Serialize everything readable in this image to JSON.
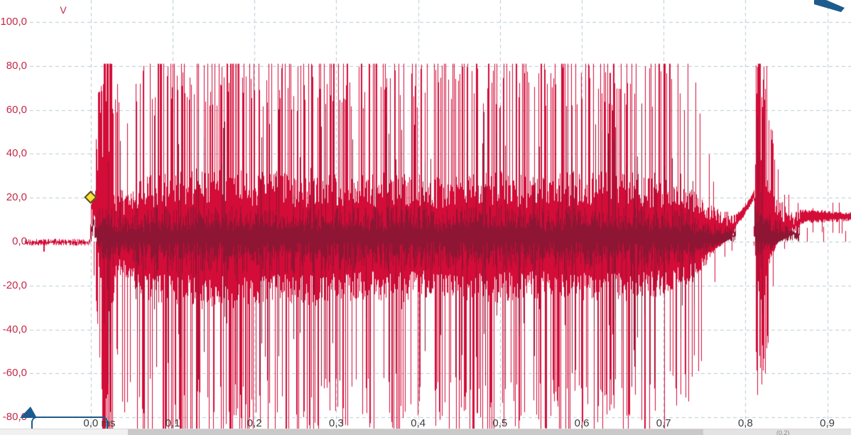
{
  "view": {
    "name": "oscilloscope waveform view",
    "background": "#ffffff"
  },
  "axes": {
    "y": {
      "unit": "V",
      "ticks": [
        {
          "label": "100,0",
          "value": 100
        },
        {
          "label": "80,0",
          "value": 80
        },
        {
          "label": "60,0",
          "value": 60
        },
        {
          "label": "40,0",
          "value": 40
        },
        {
          "label": "20,0",
          "value": 20
        },
        {
          "label": "0,0",
          "value": 0
        },
        {
          "label": "-20,0",
          "value": -20
        },
        {
          "label": "-40,0",
          "value": -40
        },
        {
          "label": "-60,0",
          "value": -60
        },
        {
          "label": "-80,0",
          "value": -80
        }
      ]
    },
    "x": {
      "ticks": [
        {
          "label": "0,0 ms",
          "t": 0.0
        },
        {
          "label": "0,1",
          "t": 0.1
        },
        {
          "label": "0,2",
          "t": 0.2
        },
        {
          "label": "0,3",
          "t": 0.3
        },
        {
          "label": "0,4",
          "t": 0.4
        },
        {
          "label": "0,5",
          "t": 0.5
        },
        {
          "label": "0,6",
          "t": 0.6
        },
        {
          "label": "0,7",
          "t": 0.7
        },
        {
          "label": "0,8",
          "t": 0.8
        },
        {
          "label": "0,9",
          "t": 0.9
        }
      ]
    }
  },
  "colors": {
    "trace_bright": "#d30c38",
    "trace_dark": "#8e1634",
    "grid": "#b7cdd6",
    "y_label": "#c42847",
    "x_label": "#3c3c3c",
    "marker_blue": "#1b5b8d",
    "diamond_fill": "#ffe03c"
  },
  "markers": {
    "trigger_diamond": {
      "t_ms": 0.0,
      "v": 20
    },
    "bottom_left_flag": true,
    "top_right_arrow": true
  },
  "scrollbar": {
    "partial_text": "(0.2)"
  },
  "chart_data": {
    "type": "line",
    "subtype": "oscilloscope noise-burst trace",
    "title": "",
    "xlabel": "ms",
    "ylabel": "V",
    "xlim_ms": [
      -0.111,
      0.929
    ],
    "ylim_v": [
      -88,
      110
    ],
    "grid": true,
    "grid_step_v": 20,
    "grid_step_ms": 0.1,
    "envelope_columns": [
      "t_ms",
      "band_lo_v",
      "band_hi_v",
      "spike_lo_v",
      "spike_hi_v",
      "spike_prob"
    ],
    "envelope": [
      [
        -0.081,
        -1.0,
        0.5,
        0,
        0,
        0.0
      ],
      [
        -0.06,
        -1.0,
        0.5,
        -5,
        0,
        0.07
      ],
      [
        -0.02,
        -1.0,
        0.5,
        0,
        0,
        0.0
      ],
      [
        -0.001,
        -1.0,
        0.5,
        0,
        0,
        0.0
      ],
      [
        0.0,
        18,
        27,
        0,
        0,
        0.0
      ],
      [
        0.004,
        15,
        30,
        -20,
        35,
        0.2
      ],
      [
        0.013,
        -30,
        45,
        -85,
        81,
        0.75
      ],
      [
        0.024,
        -35,
        40,
        -88,
        81,
        0.8
      ],
      [
        0.032,
        -15,
        25,
        -60,
        60,
        0.3
      ],
      [
        0.045,
        -18,
        22,
        -70,
        55,
        0.25
      ],
      [
        0.06,
        -25,
        28,
        -80,
        70,
        0.3
      ],
      [
        0.08,
        -30,
        32,
        -85,
        81,
        0.35
      ],
      [
        0.1,
        -28,
        30,
        -85,
        81,
        0.35
      ],
      [
        0.14,
        -32,
        34,
        -88,
        81,
        0.4
      ],
      [
        0.18,
        -30,
        33,
        -85,
        81,
        0.4
      ],
      [
        0.22,
        -28,
        32,
        -80,
        81,
        0.35
      ],
      [
        0.26,
        -30,
        30,
        -85,
        78,
        0.35
      ],
      [
        0.3,
        -28,
        33,
        -82,
        81,
        0.38
      ],
      [
        0.34,
        -26,
        31,
        -80,
        81,
        0.35
      ],
      [
        0.38,
        -28,
        33,
        -85,
        81,
        0.38
      ],
      [
        0.42,
        -25,
        30,
        -80,
        81,
        0.33
      ],
      [
        0.46,
        -27,
        32,
        -82,
        81,
        0.36
      ],
      [
        0.5,
        -28,
        33,
        -85,
        81,
        0.38
      ],
      [
        0.54,
        -26,
        30,
        -80,
        81,
        0.33
      ],
      [
        0.58,
        -28,
        32,
        -85,
        81,
        0.36
      ],
      [
        0.62,
        -27,
        33,
        -80,
        81,
        0.36
      ],
      [
        0.66,
        -28,
        32,
        -85,
        81,
        0.38
      ],
      [
        0.7,
        -25,
        30,
        -80,
        81,
        0.3
      ],
      [
        0.72,
        -22,
        28,
        -75,
        81,
        0.25
      ],
      [
        0.735,
        -18,
        24,
        -60,
        65,
        0.2
      ],
      [
        0.75,
        -12,
        20,
        -45,
        55,
        0.15
      ],
      [
        0.762,
        -5,
        16,
        -20,
        30,
        0.08
      ],
      [
        0.775,
        0,
        14,
        -8,
        20,
        0.04
      ],
      [
        0.79,
        8,
        13,
        0,
        0,
        0.0
      ],
      [
        0.8,
        13,
        17,
        0,
        0,
        0.0
      ],
      [
        0.806,
        17,
        20,
        0,
        0,
        0.0
      ],
      [
        0.81,
        20,
        23,
        0,
        0,
        0.0
      ],
      [
        0.8125,
        -20,
        50,
        -60,
        81,
        0.8
      ],
      [
        0.822,
        -30,
        45,
        -60,
        81,
        0.7
      ],
      [
        0.83,
        -10,
        25,
        -30,
        50,
        0.3
      ],
      [
        0.84,
        0,
        20,
        -10,
        30,
        0.1
      ],
      [
        0.855,
        6,
        15,
        4,
        18,
        0.04
      ],
      [
        0.87,
        9,
        14,
        6,
        16,
        0.06
      ],
      [
        0.93,
        10,
        13,
        6,
        16,
        0.06
      ]
    ],
    "clip_hi_v": 81,
    "clip_lo_v": -88,
    "trigger_marker": {
      "t_ms": 0.0,
      "v": 20
    }
  }
}
